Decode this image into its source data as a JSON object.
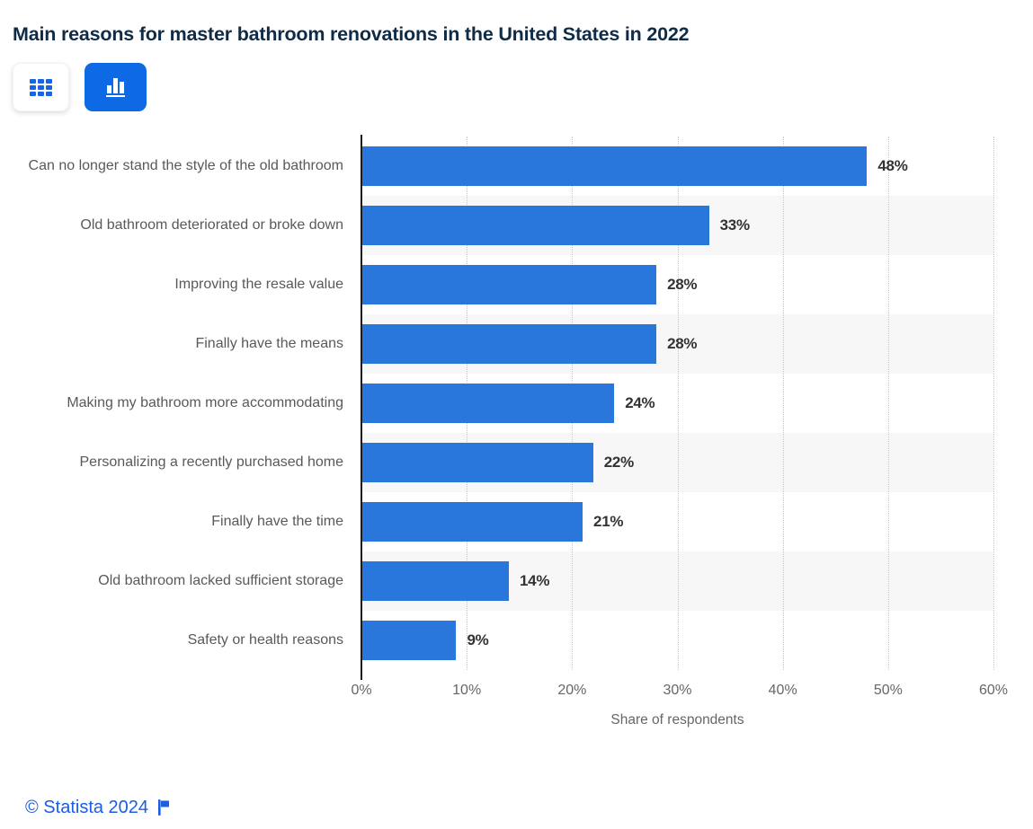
{
  "title": "Main reasons for master bathroom renovations in the United States in 2022",
  "toolbar": {
    "active_view": "chart",
    "buttons": [
      {
        "name": "table-view",
        "icon": "grid-icon",
        "active": false
      },
      {
        "name": "chart-view",
        "icon": "bar-chart-icon",
        "active": true
      }
    ],
    "active_color": "#0d6ae4",
    "icon_color": "#1565e6"
  },
  "chart_data": {
    "type": "bar",
    "orientation": "horizontal",
    "title": "Main reasons for master bathroom renovations in the United States in 2022",
    "categories": [
      "Can no longer stand the style of the old bathroom",
      "Old bathroom deteriorated or broke down",
      "Improving the resale value",
      "Finally have the means",
      "Making my bathroom more accommodating",
      "Personalizing a recently purchased home",
      "Finally have the time",
      "Old bathroom lacked sufficient storage",
      "Safety or health reasons"
    ],
    "values": [
      48,
      33,
      28,
      28,
      24,
      22,
      21,
      14,
      9
    ],
    "value_labels": [
      "48%",
      "33%",
      "28%",
      "28%",
      "24%",
      "22%",
      "21%",
      "14%",
      "9%"
    ],
    "xlabel": "Share of respondents",
    "ylabel": "",
    "x_ticks": [
      "0%",
      "10%",
      "20%",
      "30%",
      "40%",
      "50%",
      "60%"
    ],
    "xlim": [
      0,
      60
    ],
    "grid": "dotted-vertical",
    "legend": "none",
    "bar_color": "#2976dc",
    "stripe_color": "#f7f7f7",
    "axis_line_color": "#1a1a1a",
    "label_color": "#58595b",
    "value_label_color": "#333333"
  },
  "footer": {
    "copyright": "© Statista 2024",
    "flag_icon": "flag-icon",
    "link_color": "#1a5de6"
  }
}
